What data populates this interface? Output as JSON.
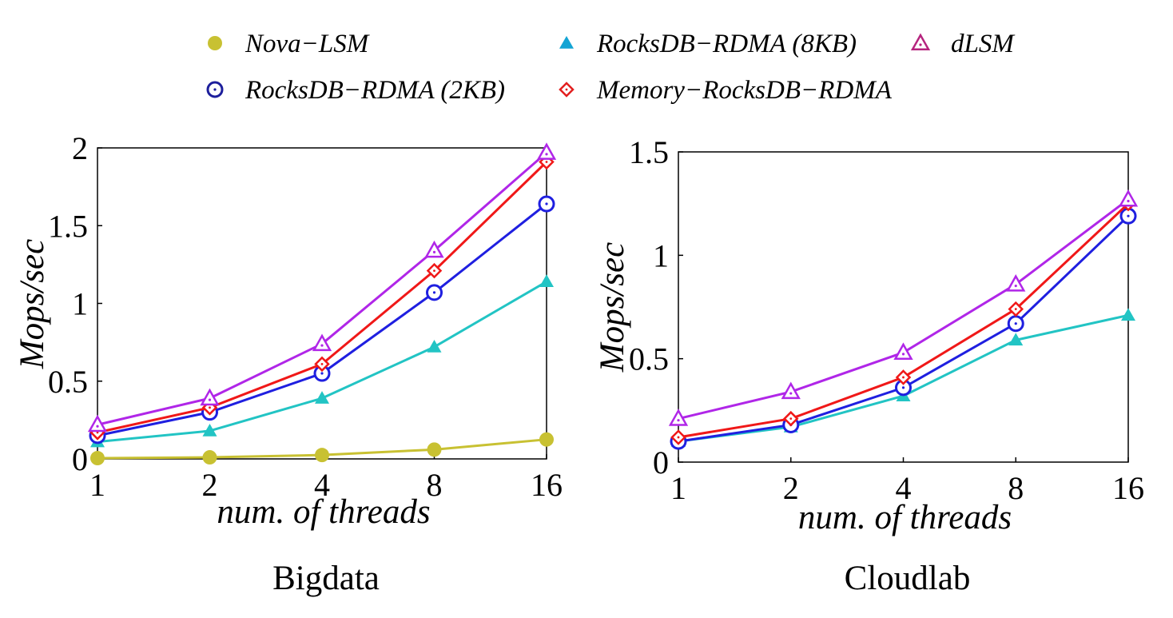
{
  "legend": [
    {
      "name": "Nova−LSM",
      "color": "#c8c132",
      "marker": "filled-circle"
    },
    {
      "name": "RocksDB−RDMA (8KB)",
      "color": "#13a4d4",
      "marker": "filled-triangle"
    },
    {
      "name": "dLSM",
      "color": "#b5247e",
      "marker": "dotted-triangle"
    },
    {
      "name": "RocksDB−RDMA (2KB)",
      "color": "#1d1f9c",
      "marker": "dotted-circle"
    },
    {
      "name": "Memory−RocksDB−RDMA",
      "color": "#e21f1f",
      "marker": "dotted-diamond"
    }
  ],
  "chart_data": [
    {
      "type": "line",
      "caption": "Bigdata",
      "xlabel": "num. of threads",
      "ylabel": "Mops/sec",
      "categories": [
        "1",
        "2",
        "4",
        "8",
        "16"
      ],
      "ylim": [
        0,
        2
      ],
      "yticks": [
        "0",
        "0.5",
        "1",
        "1.5",
        "2"
      ],
      "series": [
        {
          "name": "Nova−LSM",
          "color": "#c8c132",
          "values": [
            0.005,
            0.01,
            0.025,
            0.06,
            0.125
          ]
        },
        {
          "name": "RocksDB−RDMA (8KB)",
          "color": "#22c4c4",
          "values": [
            0.11,
            0.18,
            0.39,
            0.72,
            1.14
          ]
        },
        {
          "name": "RocksDB−RDMA (2KB)",
          "color": "#1f1fe0",
          "values": [
            0.15,
            0.3,
            0.55,
            1.07,
            1.64
          ]
        },
        {
          "name": "Memory−RocksDB−RDMA",
          "color": "#f01818",
          "values": [
            0.17,
            0.33,
            0.61,
            1.21,
            1.91
          ]
        },
        {
          "name": "dLSM",
          "color": "#b026e8",
          "values": [
            0.22,
            0.39,
            0.74,
            1.34,
            1.97
          ]
        }
      ]
    },
    {
      "type": "line",
      "caption": "Cloudlab",
      "xlabel": "num. of threads",
      "ylabel": "Mops/sec",
      "categories": [
        "1",
        "2",
        "4",
        "8",
        "16"
      ],
      "ylim": [
        0,
        1.5
      ],
      "yticks": [
        "0",
        "0.5",
        "1",
        "1.5"
      ],
      "series": [
        {
          "name": "RocksDB−RDMA (8KB)",
          "color": "#22c4c4",
          "values": [
            0.1,
            0.17,
            0.32,
            0.59,
            0.71
          ]
        },
        {
          "name": "RocksDB−RDMA (2KB)",
          "color": "#1f1fe0",
          "values": [
            0.1,
            0.18,
            0.36,
            0.67,
            1.19
          ]
        },
        {
          "name": "Memory−RocksDB−RDMA",
          "color": "#f01818",
          "values": [
            0.12,
            0.21,
            0.41,
            0.74,
            1.25
          ]
        },
        {
          "name": "dLSM",
          "color": "#b026e8",
          "values": [
            0.21,
            0.34,
            0.53,
            0.86,
            1.27
          ]
        }
      ]
    }
  ]
}
